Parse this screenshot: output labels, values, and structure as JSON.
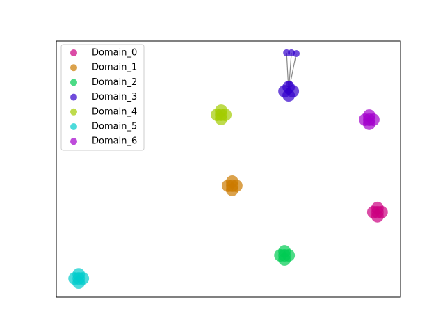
{
  "chart_data": {
    "type": "scatter",
    "xlim": [
      0,
      100
    ],
    "ylim": [
      0,
      100
    ],
    "legend": "upper left",
    "series": [
      {
        "name": "Domain_0",
        "color": "#cc0080",
        "x": [
          93.3,
          92.1,
          94.5,
          93.3,
          93.3
        ],
        "y": [
          33.2,
          33.2,
          33.2,
          34.8,
          31.6
        ]
      },
      {
        "name": "Domain_1",
        "color": "#cc7a00",
        "x": [
          51.1,
          49.9,
          52.3,
          51.1,
          51.1
        ],
        "y": [
          43.5,
          43.5,
          43.5,
          45.1,
          41.9
        ]
      },
      {
        "name": "Domain_2",
        "color": "#00cc52",
        "x": [
          66.3,
          65.1,
          67.5,
          66.3,
          66.3
        ],
        "y": [
          16.3,
          16.3,
          16.3,
          17.9,
          14.7
        ]
      },
      {
        "name": "Domain_3",
        "color": "#3300cc",
        "x": [
          67.5,
          66.3,
          68.7,
          67.5,
          67.5,
          67.7,
          66.9,
          68.3,
          69.7
        ],
        "y": [
          80.4,
          80.4,
          80.4,
          82.0,
          78.8,
          83.2,
          95.4,
          95.4,
          95.1
        ]
      },
      {
        "name": "Domain_4",
        "color": "#a3cc00",
        "x": [
          47.9,
          46.7,
          49.1,
          47.9,
          47.9
        ],
        "y": [
          71.2,
          71.2,
          71.2,
          72.8,
          69.6
        ]
      },
      {
        "name": "Domain_5",
        "color": "#00cccc",
        "x": [
          6.5,
          5.3,
          7.7,
          6.5,
          6.5
        ],
        "y": [
          7.3,
          7.3,
          7.3,
          8.9,
          5.7
        ]
      },
      {
        "name": "Domain_6",
        "color": "#a300cc",
        "x": [
          90.9,
          89.7,
          92.1,
          90.9,
          90.9
        ],
        "y": [
          69.3,
          69.3,
          69.3,
          70.9,
          67.7
        ]
      }
    ],
    "links": [
      {
        "series": 3,
        "from": 0,
        "to": [
          5,
          6,
          7,
          8
        ]
      }
    ]
  }
}
